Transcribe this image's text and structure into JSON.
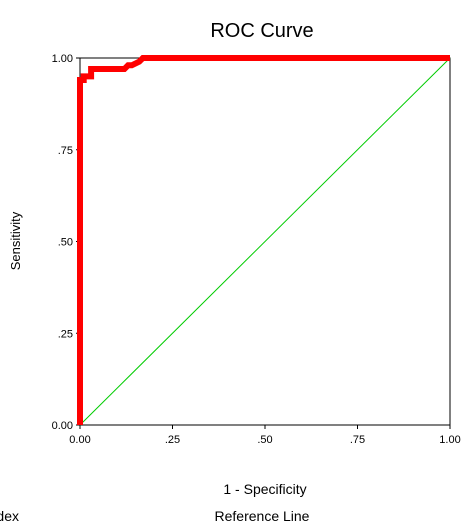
{
  "chart_data": {
    "type": "line",
    "title": "ROC Curve",
    "xlabel": "1 - Specificity",
    "ylabel": "Sensitivity",
    "xlim": [
      0,
      1
    ],
    "ylim": [
      0,
      1
    ],
    "xticks": [
      "0.00",
      ".25",
      ".50",
      ".75",
      "1.00"
    ],
    "yticks": [
      "0.00",
      ".25",
      ".50",
      ".75",
      "1.00"
    ],
    "grid": false,
    "legend": {
      "placement": "bottom",
      "entries": [
        "dex",
        "Reference Line"
      ]
    },
    "series": [
      {
        "name": "dex",
        "color": "#ff0000",
        "x": [
          0.0,
          0.0,
          0.0,
          0.0,
          0.01,
          0.01,
          0.02,
          0.03,
          0.03,
          0.05,
          0.06,
          0.08,
          0.1,
          0.12,
          0.13,
          0.14,
          0.16,
          0.17,
          0.2,
          0.3,
          0.4,
          0.6,
          0.8,
          1.0
        ],
        "y": [
          0.0,
          0.6,
          0.94,
          0.94,
          0.94,
          0.95,
          0.95,
          0.95,
          0.97,
          0.97,
          0.97,
          0.97,
          0.97,
          0.97,
          0.98,
          0.98,
          0.99,
          1.0,
          1.0,
          1.0,
          1.0,
          1.0,
          1.0,
          1.0
        ]
      },
      {
        "name": "Reference Line",
        "color": "#00cc00",
        "x": [
          0,
          1
        ],
        "y": [
          0,
          1
        ]
      }
    ]
  }
}
